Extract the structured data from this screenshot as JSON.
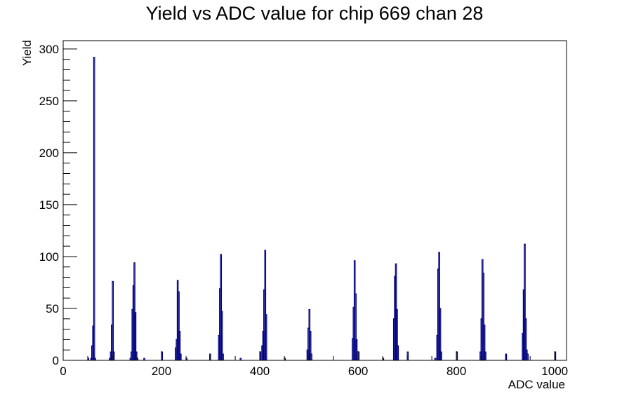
{
  "chart_data": {
    "type": "bar",
    "title": "Yield vs ADC value for chip 669 chan 28",
    "xlabel": "ADC value",
    "ylabel": "Yield",
    "xlim": [
      0,
      1024
    ],
    "ylim": [
      0,
      308
    ],
    "x_ticks": [
      0,
      200,
      400,
      600,
      800,
      1000
    ],
    "y_ticks": [
      0,
      50,
      100,
      150,
      200,
      250,
      300
    ],
    "grid": false,
    "legend": "none",
    "line_color": "#000080",
    "bin_width": 2,
    "bins": [
      {
        "x": 50,
        "y": 2
      },
      {
        "x": 56,
        "y": 2
      },
      {
        "x": 58,
        "y": 14
      },
      {
        "x": 60,
        "y": 33
      },
      {
        "x": 62,
        "y": 292
      },
      {
        "x": 64,
        "y": 2
      },
      {
        "x": 94,
        "y": 2
      },
      {
        "x": 96,
        "y": 8
      },
      {
        "x": 98,
        "y": 34
      },
      {
        "x": 100,
        "y": 76
      },
      {
        "x": 102,
        "y": 8
      },
      {
        "x": 136,
        "y": 2
      },
      {
        "x": 138,
        "y": 8
      },
      {
        "x": 140,
        "y": 49
      },
      {
        "x": 142,
        "y": 72
      },
      {
        "x": 144,
        "y": 94
      },
      {
        "x": 146,
        "y": 46
      },
      {
        "x": 148,
        "y": 8
      },
      {
        "x": 150,
        "y": 2
      },
      {
        "x": 164,
        "y": 2
      },
      {
        "x": 200,
        "y": 8
      },
      {
        "x": 228,
        "y": 12
      },
      {
        "x": 230,
        "y": 20
      },
      {
        "x": 232,
        "y": 77
      },
      {
        "x": 234,
        "y": 66
      },
      {
        "x": 236,
        "y": 28
      },
      {
        "x": 238,
        "y": 6
      },
      {
        "x": 250,
        "y": 2
      },
      {
        "x": 298,
        "y": 6
      },
      {
        "x": 316,
        "y": 24
      },
      {
        "x": 318,
        "y": 69
      },
      {
        "x": 320,
        "y": 102
      },
      {
        "x": 322,
        "y": 47
      },
      {
        "x": 324,
        "y": 6
      },
      {
        "x": 360,
        "y": 2
      },
      {
        "x": 400,
        "y": 8
      },
      {
        "x": 404,
        "y": 14
      },
      {
        "x": 406,
        "y": 28
      },
      {
        "x": 408,
        "y": 68
      },
      {
        "x": 410,
        "y": 106
      },
      {
        "x": 412,
        "y": 44
      },
      {
        "x": 450,
        "y": 2
      },
      {
        "x": 496,
        "y": 10
      },
      {
        "x": 498,
        "y": 31
      },
      {
        "x": 500,
        "y": 49
      },
      {
        "x": 502,
        "y": 28
      },
      {
        "x": 504,
        "y": 6
      },
      {
        "x": 588,
        "y": 21
      },
      {
        "x": 590,
        "y": 51
      },
      {
        "x": 592,
        "y": 96
      },
      {
        "x": 594,
        "y": 64
      },
      {
        "x": 596,
        "y": 20
      },
      {
        "x": 600,
        "y": 8
      },
      {
        "x": 650,
        "y": 2
      },
      {
        "x": 672,
        "y": 40
      },
      {
        "x": 674,
        "y": 81
      },
      {
        "x": 676,
        "y": 93
      },
      {
        "x": 678,
        "y": 49
      },
      {
        "x": 680,
        "y": 14
      },
      {
        "x": 700,
        "y": 8
      },
      {
        "x": 756,
        "y": 2
      },
      {
        "x": 760,
        "y": 24
      },
      {
        "x": 762,
        "y": 88
      },
      {
        "x": 764,
        "y": 104
      },
      {
        "x": 766,
        "y": 50
      },
      {
        "x": 768,
        "y": 8
      },
      {
        "x": 800,
        "y": 8
      },
      {
        "x": 848,
        "y": 8
      },
      {
        "x": 850,
        "y": 40
      },
      {
        "x": 852,
        "y": 97
      },
      {
        "x": 854,
        "y": 84
      },
      {
        "x": 856,
        "y": 34
      },
      {
        "x": 858,
        "y": 8
      },
      {
        "x": 900,
        "y": 6
      },
      {
        "x": 934,
        "y": 26
      },
      {
        "x": 936,
        "y": 68
      },
      {
        "x": 938,
        "y": 112
      },
      {
        "x": 940,
        "y": 40
      },
      {
        "x": 942,
        "y": 10
      },
      {
        "x": 944,
        "y": 6
      },
      {
        "x": 1000,
        "y": 8
      }
    ]
  }
}
